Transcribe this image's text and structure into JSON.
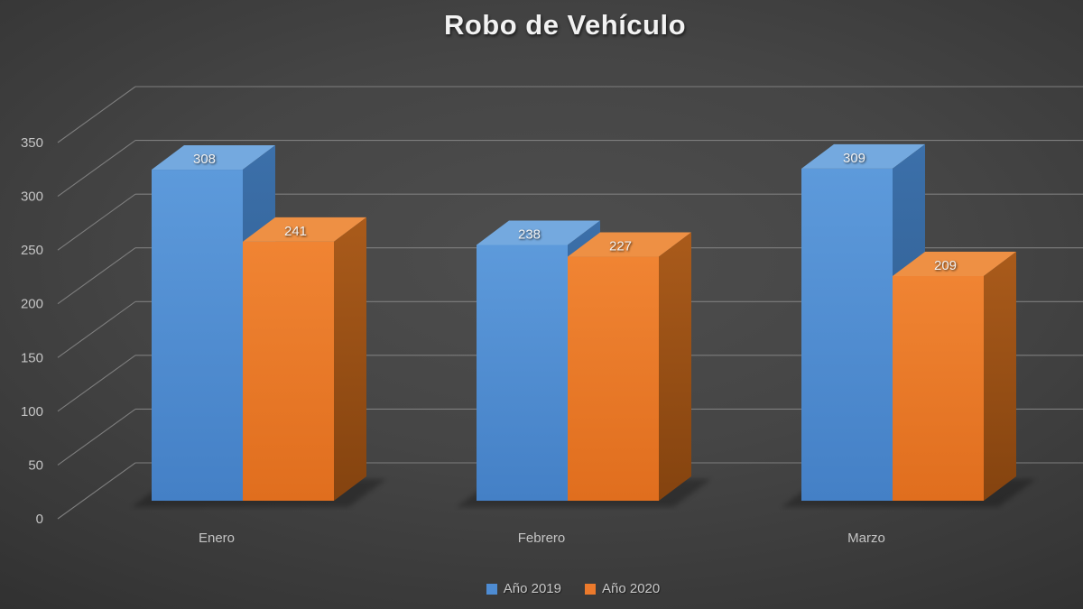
{
  "chart_data": {
    "type": "bar",
    "projection": "3d",
    "title": "Robo de Vehículo",
    "categories": [
      "Enero",
      "Febrero",
      "Marzo"
    ],
    "series": [
      {
        "name": "Año 2019",
        "values": [
          308,
          238,
          309
        ],
        "color": "#4E8CD3",
        "shades": {
          "front_top": "#5D9ADB",
          "front_bottom": "#4480C6",
          "top": "#74A9DF",
          "side_top": "#3C70AA",
          "side_bottom": "#2B5787"
        }
      },
      {
        "name": "Año 2020",
        "values": [
          241,
          227,
          209
        ],
        "color": "#EC7A2C",
        "shades": {
          "front_top": "#F08433",
          "front_bottom": "#E06E1E",
          "top": "#EE9044",
          "side_top": "#AA5B1B",
          "side_bottom": "#84430F"
        }
      }
    ],
    "yticks": [
      0,
      50,
      100,
      150,
      200,
      250,
      300,
      350
    ],
    "ylim": [
      0,
      350
    ],
    "xlabel": "",
    "ylabel": "",
    "grid": true,
    "legend_position": "bottom",
    "colors": {
      "background": "#3F3F3F",
      "grid": "#7E7E7E",
      "axis_text": "#C4C4C4",
      "data_label_text": "#F2F2F2",
      "title_text": "#F2F2F2",
      "shadow": "#000000"
    }
  }
}
